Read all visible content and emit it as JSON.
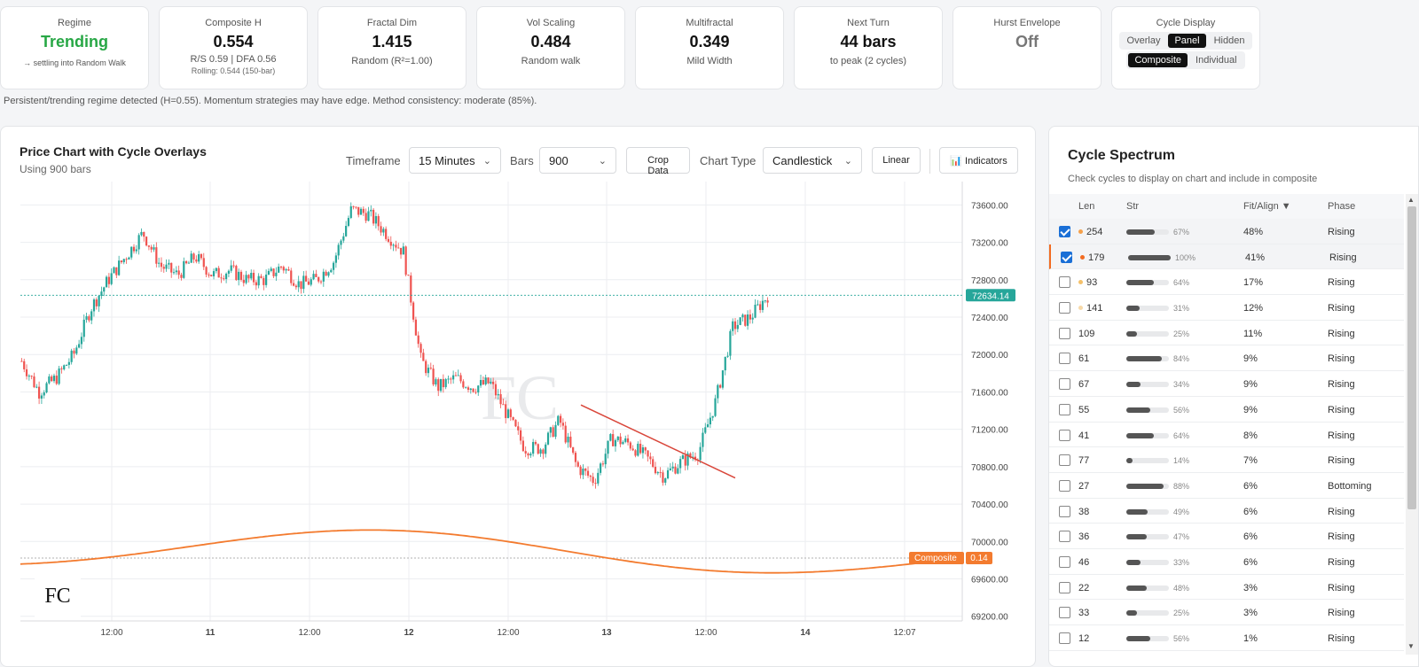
{
  "metrics": [
    {
      "label": "Regime",
      "value": "Trending",
      "sub": "→ settling into Random Walk",
      "style": "green"
    },
    {
      "label": "Composite H",
      "value": "0.554",
      "sub": "R/S 0.59 | DFA 0.56",
      "sub2": "Rolling: 0.544 (150-bar)"
    },
    {
      "label": "Fractal Dim",
      "value": "1.415",
      "sub": "Random (R²=1.00)"
    },
    {
      "label": "Vol Scaling",
      "value": "0.484",
      "sub": "Random walk"
    },
    {
      "label": "Multifractal",
      "value": "0.349",
      "sub": "Mild Width"
    },
    {
      "label": "Next Turn",
      "value": "44 bars",
      "sub": "to peak (2 cycles)"
    },
    {
      "label": "Hurst Envelope",
      "value": "Off",
      "style": "grey"
    }
  ],
  "cycle_display": {
    "label": "Cycle Display",
    "modes": [
      "Overlay",
      "Panel",
      "Hidden"
    ],
    "active_mode": "Panel",
    "views": [
      "Composite",
      "Individual"
    ],
    "active_view": "Composite"
  },
  "note": "Persistent/trending regime detected (H=0.55). Momentum strategies may have edge. Method consistency: moderate (85%).",
  "chart_panel": {
    "title": "Price Chart with Cycle Overlays",
    "subtitle": "Using 900 bars",
    "timeframe_label": "Timeframe",
    "timeframe_value": "15 Minutes",
    "bars_label": "Bars",
    "bars_value": "900",
    "crop_label": "Crop Data",
    "charttype_label": "Chart Type",
    "charttype_value": "Candlestick",
    "scale_label": "Linear",
    "indicators_label": "📊 Indicators"
  },
  "chart_data": {
    "type": "candlestick",
    "y_ticks": [
      "73600.00",
      "73200.00",
      "72800.00",
      "72400.00",
      "72000.00",
      "71600.00",
      "71200.00",
      "70800.00",
      "70400.00",
      "70000.00",
      "69600.00",
      "69200.00"
    ],
    "x_ticks": [
      "12:00",
      "11",
      "12:00",
      "12",
      "12:00",
      "13",
      "12:00",
      "14",
      "12:07"
    ],
    "ylim": [
      69150,
      73850
    ],
    "last_price": "72634.14",
    "composite_label": "Composite",
    "composite_value": "0.14",
    "colors": {
      "up": "#26a69a",
      "down": "#ef5350",
      "composite": "#f37b2f",
      "trend": "#d9463a"
    },
    "price_path": [
      71930,
      71600,
      71750,
      72000,
      72500,
      72800,
      73050,
      73300,
      72950,
      72850,
      73050,
      72850,
      72900,
      72800,
      72800,
      72950,
      72750,
      72800,
      73000,
      73550,
      73500,
      73300,
      73100,
      71950,
      71650,
      71750,
      71650,
      71700,
      71350,
      71000,
      71000,
      71300,
      70800,
      70650,
      71100,
      71050,
      70900,
      70700,
      70850,
      70950,
      71500,
      72300,
      72400,
      72634
    ]
  },
  "spectrum": {
    "title": "Cycle Spectrum",
    "hint": "Check cycles to display on chart and include in composite",
    "headers": {
      "len": "Len",
      "str": "Str",
      "fit": "Fit/Align ▼",
      "phase": "Phase"
    },
    "rows": [
      {
        "len": "254",
        "str": 67,
        "str_label": "67%",
        "fit": "48%",
        "phase": "Rising",
        "checked": true,
        "dot": "#f5a04a"
      },
      {
        "len": "179",
        "str": 100,
        "str_label": "100%",
        "fit": "41%",
        "phase": "Rising",
        "checked": true,
        "dot": "#f26b21",
        "accent": true
      },
      {
        "len": "93",
        "str": 64,
        "str_label": "64%",
        "fit": "17%",
        "phase": "Rising",
        "checked": false,
        "dot": "#f5c16a"
      },
      {
        "len": "141",
        "str": 31,
        "str_label": "31%",
        "fit": "12%",
        "phase": "Rising",
        "checked": false,
        "dot": "#f7d9a8"
      },
      {
        "len": "109",
        "str": 25,
        "str_label": "25%",
        "fit": "11%",
        "phase": "Rising",
        "checked": false
      },
      {
        "len": "61",
        "str": 84,
        "str_label": "84%",
        "fit": "9%",
        "phase": "Rising",
        "checked": false
      },
      {
        "len": "67",
        "str": 34,
        "str_label": "34%",
        "fit": "9%",
        "phase": "Rising",
        "checked": false
      },
      {
        "len": "55",
        "str": 56,
        "str_label": "56%",
        "fit": "9%",
        "phase": "Rising",
        "checked": false
      },
      {
        "len": "41",
        "str": 64,
        "str_label": "64%",
        "fit": "8%",
        "phase": "Rising",
        "checked": false
      },
      {
        "len": "77",
        "str": 14,
        "str_label": "14%",
        "fit": "7%",
        "phase": "Rising",
        "checked": false
      },
      {
        "len": "27",
        "str": 88,
        "str_label": "88%",
        "fit": "6%",
        "phase": "Bottoming",
        "checked": false
      },
      {
        "len": "38",
        "str": 49,
        "str_label": "49%",
        "fit": "6%",
        "phase": "Rising",
        "checked": false
      },
      {
        "len": "36",
        "str": 47,
        "str_label": "47%",
        "fit": "6%",
        "phase": "Rising",
        "checked": false
      },
      {
        "len": "46",
        "str": 33,
        "str_label": "33%",
        "fit": "6%",
        "phase": "Rising",
        "checked": false
      },
      {
        "len": "22",
        "str": 48,
        "str_label": "48%",
        "fit": "3%",
        "phase": "Rising",
        "checked": false
      },
      {
        "len": "33",
        "str": 25,
        "str_label": "25%",
        "fit": "3%",
        "phase": "Rising",
        "checked": false
      },
      {
        "len": "12",
        "str": 56,
        "str_label": "56%",
        "fit": "1%",
        "phase": "Rising",
        "checked": false
      }
    ]
  }
}
